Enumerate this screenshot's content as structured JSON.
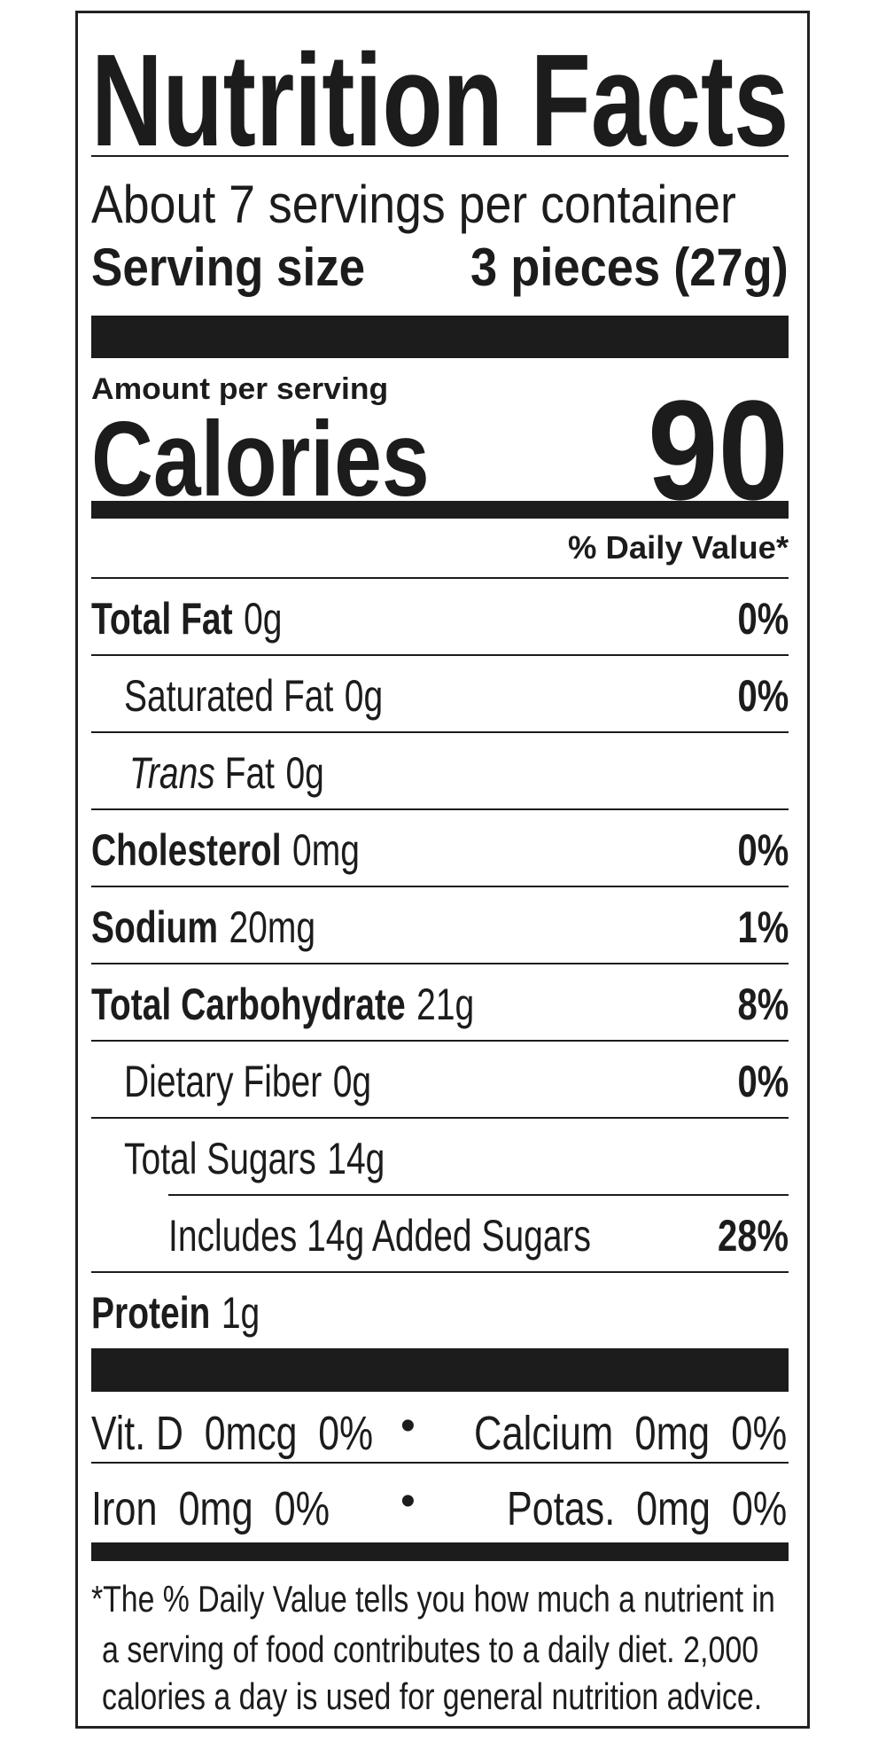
{
  "title": "Nutrition Facts",
  "servings_per_container": "About 7 servings per container",
  "serving_size": {
    "label": "Serving size",
    "value": "3 pieces (27g)"
  },
  "amount_per_serving": "Amount per serving",
  "calories": {
    "label": "Calories",
    "value": "90"
  },
  "daily_value_header": "% Daily Value*",
  "nutrients": [
    {
      "label": "Total Fat",
      "amount": "0g",
      "dv": "0%"
    },
    {
      "label": "Saturated Fat",
      "amount": "0g",
      "dv": "0%"
    },
    {
      "label_italic": "Trans",
      "label": "Fat",
      "amount": "0g",
      "dv": ""
    },
    {
      "label": "Cholesterol",
      "amount": "0mg",
      "dv": "0%"
    },
    {
      "label": "Sodium",
      "amount": "20mg",
      "dv": "1%"
    },
    {
      "label": "Total Carbohydrate",
      "amount": "21g",
      "dv": "8%"
    },
    {
      "label": "Dietary Fiber",
      "amount": "0g",
      "dv": "0%"
    },
    {
      "label": "Total Sugars",
      "amount": "14g",
      "dv": ""
    },
    {
      "label": "Includes 14g Added Sugars",
      "amount": "",
      "dv": "28%"
    },
    {
      "label": "Protein",
      "amount": "1g",
      "dv": ""
    }
  ],
  "micronutrients": [
    {
      "text": "Vit. D  0mcg  0%"
    },
    {
      "text": "Calcium  0mg  0%"
    },
    {
      "text": "Iron  0mg  0%"
    },
    {
      "text": "Potas.  0mg  0%"
    }
  ],
  "bullet": "•",
  "footnote": [
    "*The % Daily Value tells you how much a nutrient in",
    "a serving of food contributes to a daily diet. 2,000",
    "calories a day is used for general nutrition advice."
  ]
}
